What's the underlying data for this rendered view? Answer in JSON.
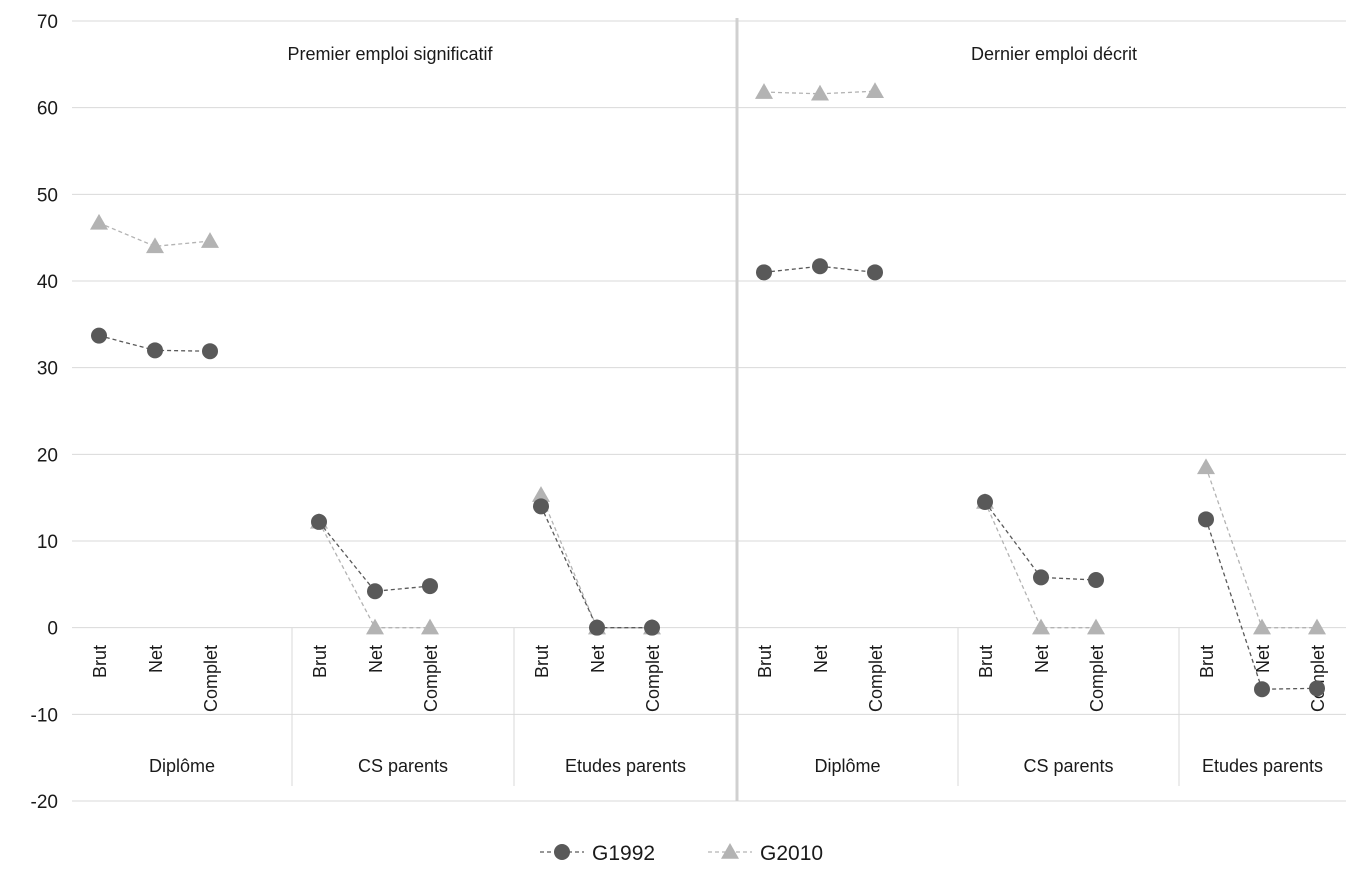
{
  "chart_data": {
    "type": "line",
    "title": "",
    "xlabel": "",
    "ylabel": "",
    "ylim": [
      -20,
      70
    ],
    "yticks": [
      -20,
      -10,
      0,
      10,
      20,
      30,
      40,
      50,
      60,
      70
    ],
    "grid": "horizontal",
    "legend_position": "bottom",
    "panels": [
      {
        "title": "Premier emploi significatif",
        "groups": [
          {
            "label": "Diplôme",
            "categories": [
              "Brut",
              "Net",
              "Complet"
            ]
          },
          {
            "label": "CS parents",
            "categories": [
              "Brut",
              "Net",
              "Complet"
            ]
          },
          {
            "label": "Etudes parents",
            "categories": [
              "Brut",
              "Net",
              "Complet"
            ]
          }
        ]
      },
      {
        "title": "Dernier emploi décrit",
        "groups": [
          {
            "label": "Diplôme",
            "categories": [
              "Brut",
              "Net",
              "Complet"
            ]
          },
          {
            "label": "CS parents",
            "categories": [
              "Brut",
              "Net",
              "Complet"
            ]
          },
          {
            "label": "Etudes parents",
            "categories": [
              "Brut",
              "Net",
              "Complet"
            ]
          }
        ]
      }
    ],
    "series": [
      {
        "name": "G1992",
        "marker": "circle",
        "color": "#595959",
        "values": [
          [
            [
              33.7,
              32.0,
              31.9
            ],
            [
              12.2,
              4.2,
              4.8
            ],
            [
              14.0,
              0.0,
              0.0
            ]
          ],
          [
            [
              41.0,
              41.7,
              41.0
            ],
            [
              14.5,
              5.8,
              5.5
            ],
            [
              12.5,
              -7.1,
              -7.0
            ]
          ]
        ]
      },
      {
        "name": "G2010",
        "marker": "triangle",
        "color": "#b3b3b3",
        "values": [
          [
            [
              46.7,
              44.0,
              44.6
            ],
            [
              12.2,
              0.0,
              0.0
            ],
            [
              15.3,
              0.0,
              0.0
            ]
          ],
          [
            [
              61.8,
              61.6,
              61.9
            ],
            [
              14.5,
              0.0,
              0.0
            ],
            [
              18.5,
              0.0,
              0.0
            ]
          ]
        ]
      }
    ]
  }
}
